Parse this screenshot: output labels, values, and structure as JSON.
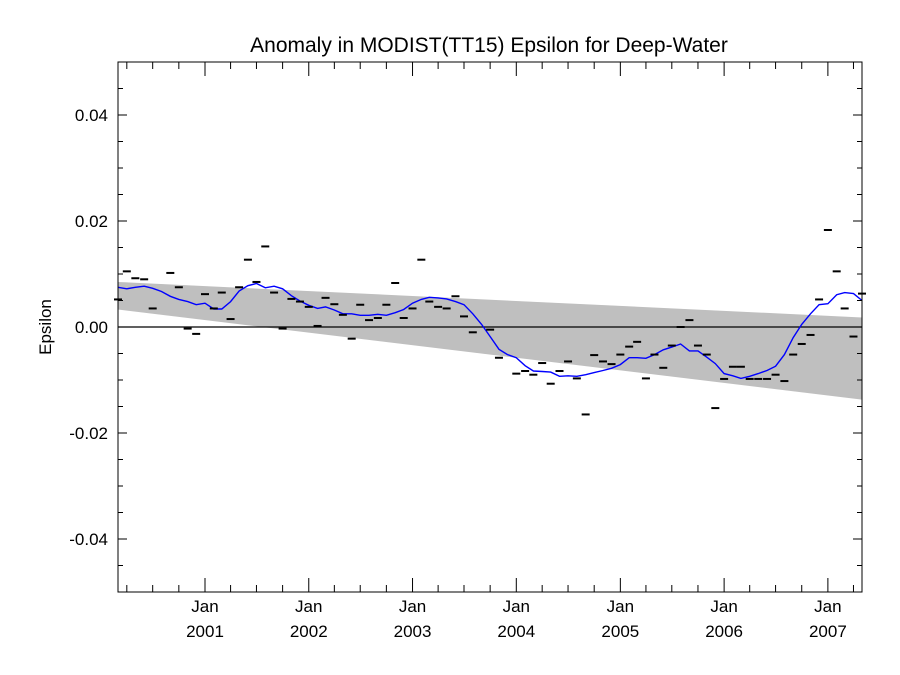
{
  "chart_data": {
    "type": "line",
    "title": "Anomaly in MODIST(TT15) Epsilon for Deep-Water",
    "xlabel": "",
    "ylabel": "Epsilon",
    "xlim": [
      "2000-03-01",
      "2007-05-01"
    ],
    "ylim": [
      -0.05,
      0.05
    ],
    "yticks": [
      -0.04,
      -0.02,
      0.0,
      0.02,
      0.04
    ],
    "ytick_labels": [
      "-0.04",
      "-0.02",
      "0.00",
      "0.02",
      "0.04"
    ],
    "xticks": [
      "2001-01-01",
      "2002-01-01",
      "2003-01-01",
      "2004-01-01",
      "2005-01-01",
      "2006-01-01",
      "2007-01-01"
    ],
    "xtick_labels": [
      {
        "month": "Jan",
        "year": "2001"
      },
      {
        "month": "Jan",
        "year": "2002"
      },
      {
        "month": "Jan",
        "year": "2003"
      },
      {
        "month": "Jan",
        "year": "2004"
      },
      {
        "month": "Jan",
        "year": "2005"
      },
      {
        "month": "Jan",
        "year": "2006"
      },
      {
        "month": "Jan",
        "year": "2007"
      }
    ],
    "grid": false,
    "legend": "none",
    "zero_line": 0.0,
    "colors": {
      "band": "#bfbfbf",
      "smooth": "#0000ff",
      "points": "#000000",
      "axes": "#000000"
    },
    "uncertainty_band": {
      "x": [
        "2000-03-01",
        "2007-05-01"
      ],
      "upper": [
        0.0085,
        0.0018
      ],
      "lower": [
        0.0033,
        -0.0137
      ]
    },
    "series": [
      {
        "marker": "dash",
        "x": [
          "2000-03-01",
          "2000-04-01",
          "2000-05-01",
          "2000-06-01",
          "2000-07-01",
          "2000-08-01",
          "2000-09-01",
          "2000-10-01",
          "2000-11-01",
          "2000-12-01",
          "2001-01-01",
          "2001-02-01",
          "2001-03-01",
          "2001-04-01",
          "2001-05-01",
          "2001-06-01",
          "2001-07-01",
          "2001-08-01",
          "2001-09-01",
          "2001-10-01",
          "2001-11-01",
          "2001-12-01",
          "2002-01-01",
          "2002-02-01",
          "2002-03-01",
          "2002-04-01",
          "2002-05-01",
          "2002-06-01",
          "2002-07-01",
          "2002-08-01",
          "2002-09-01",
          "2002-10-01",
          "2002-11-01",
          "2002-12-01",
          "2003-01-01",
          "2003-02-01",
          "2003-03-01",
          "2003-04-01",
          "2003-05-01",
          "2003-06-01",
          "2003-07-01",
          "2003-08-01",
          "2003-09-01",
          "2003-10-01",
          "2003-11-01",
          "2003-12-01",
          "2004-01-01",
          "2004-02-01",
          "2004-03-01",
          "2004-04-01",
          "2004-05-01",
          "2004-06-01",
          "2004-07-01",
          "2004-08-01",
          "2004-09-01",
          "2004-10-01",
          "2004-11-01",
          "2004-12-01",
          "2005-01-01",
          "2005-02-01",
          "2005-03-01",
          "2005-04-01",
          "2005-05-01",
          "2005-06-01",
          "2005-07-01",
          "2005-08-01",
          "2005-09-01",
          "2005-10-01",
          "2005-11-01",
          "2005-12-01",
          "2006-01-01",
          "2006-02-01",
          "2006-03-01",
          "2006-04-01",
          "2006-05-01",
          "2006-06-01",
          "2006-07-01",
          "2006-08-01",
          "2006-09-01",
          "2006-10-01",
          "2006-11-01",
          "2006-12-01",
          "2007-01-01",
          "2007-02-01",
          "2007-03-01",
          "2007-04-01",
          "2007-05-01"
        ],
        "values": [
          0.0052,
          0.0105,
          0.0092,
          0.009,
          0.0035,
          null,
          0.0102,
          0.0075,
          -0.0003,
          -0.0013,
          0.0062,
          0.0035,
          0.0065,
          0.0015,
          0.0075,
          0.0127,
          0.0085,
          0.0152,
          0.0065,
          -0.0003,
          0.0053,
          0.0048,
          0.0038,
          0.0002,
          0.0055,
          0.0043,
          0.0023,
          -0.0022,
          0.0042,
          0.0013,
          0.0017,
          0.0042,
          0.0083,
          0.0017,
          0.0035,
          0.0127,
          0.0048,
          0.0038,
          0.0035,
          0.0058,
          0.002,
          -0.001,
          null,
          -0.0005,
          -0.0058,
          null,
          -0.0088,
          -0.0083,
          -0.009,
          -0.0068,
          -0.0107,
          -0.0083,
          -0.0065,
          -0.0097,
          -0.0165,
          -0.0053,
          -0.0065,
          -0.007,
          -0.0052,
          -0.0037,
          -0.0028,
          -0.0097,
          -0.0052,
          -0.0077,
          -0.0035,
          0.0,
          0.0013,
          -0.0035,
          -0.0052,
          -0.0153,
          -0.0098,
          -0.0075,
          -0.0075,
          -0.0098,
          -0.0098,
          -0.0098,
          -0.009,
          -0.0102,
          -0.0052,
          -0.0032,
          -0.0015,
          0.0052,
          0.0183,
          0.0105,
          0.0035,
          -0.0018,
          0.0063
        ]
      },
      {
        "marker": "line",
        "x": [
          "2000-03-01",
          "2000-04-01",
          "2000-05-01",
          "2000-06-01",
          "2000-07-01",
          "2000-08-01",
          "2000-09-01",
          "2000-10-01",
          "2000-11-01",
          "2000-12-01",
          "2001-01-01",
          "2001-02-01",
          "2001-03-01",
          "2001-04-01",
          "2001-05-01",
          "2001-06-01",
          "2001-07-01",
          "2001-08-01",
          "2001-09-01",
          "2001-10-01",
          "2001-11-01",
          "2001-12-01",
          "2002-01-01",
          "2002-02-01",
          "2002-03-01",
          "2002-04-01",
          "2002-05-01",
          "2002-06-01",
          "2002-07-01",
          "2002-08-01",
          "2002-09-01",
          "2002-10-01",
          "2002-11-01",
          "2002-12-01",
          "2003-01-01",
          "2003-02-01",
          "2003-03-01",
          "2003-04-01",
          "2003-05-01",
          "2003-06-01",
          "2003-07-01",
          "2003-08-01",
          "2003-09-01",
          "2003-10-01",
          "2003-11-01",
          "2003-12-01",
          "2004-01-01",
          "2004-02-01",
          "2004-03-01",
          "2004-04-01",
          "2004-05-01",
          "2004-06-01",
          "2004-07-01",
          "2004-08-01",
          "2004-09-01",
          "2004-10-01",
          "2004-11-01",
          "2004-12-01",
          "2005-01-01",
          "2005-02-01",
          "2005-03-01",
          "2005-04-01",
          "2005-05-01",
          "2005-06-01",
          "2005-07-01",
          "2005-08-01",
          "2005-09-01",
          "2005-10-01",
          "2005-11-01",
          "2005-12-01",
          "2006-01-01",
          "2006-02-01",
          "2006-03-01",
          "2006-04-01",
          "2006-05-01",
          "2006-06-01",
          "2006-07-01",
          "2006-08-01",
          "2006-09-01",
          "2006-10-01",
          "2006-11-01",
          "2006-12-01",
          "2007-01-01",
          "2007-02-01",
          "2007-03-01",
          "2007-04-01",
          "2007-05-01"
        ],
        "values": [
          0.0075,
          0.0072,
          0.0075,
          0.0077,
          0.0073,
          0.0067,
          0.0058,
          0.0052,
          0.0048,
          0.0042,
          0.0045,
          0.0034,
          0.0034,
          0.0048,
          0.0068,
          0.0078,
          0.0082,
          0.0074,
          0.0077,
          0.0072,
          0.0059,
          0.0049,
          0.0041,
          0.0035,
          0.0038,
          0.0032,
          0.0025,
          0.0025,
          0.0022,
          0.0022,
          0.0024,
          0.0022,
          0.0027,
          0.0033,
          0.0045,
          0.0052,
          0.0056,
          0.0055,
          0.0053,
          0.0048,
          0.0042,
          0.0025,
          0.0005,
          -0.0018,
          -0.0042,
          -0.0052,
          -0.0058,
          -0.0073,
          -0.0083,
          -0.0084,
          -0.0085,
          -0.0093,
          -0.0092,
          -0.0093,
          -0.009,
          -0.0086,
          -0.0082,
          -0.0078,
          -0.0071,
          -0.0058,
          -0.0058,
          -0.0059,
          -0.0052,
          -0.0043,
          -0.0038,
          -0.0032,
          -0.0045,
          -0.0045,
          -0.0057,
          -0.0069,
          -0.0088,
          -0.0092,
          -0.0097,
          -0.0093,
          -0.0088,
          -0.0082,
          -0.0074,
          -0.0052,
          -0.002,
          0.0005,
          0.0025,
          0.0042,
          0.0044,
          0.0061,
          0.0065,
          0.0063,
          0.005
        ]
      }
    ]
  }
}
